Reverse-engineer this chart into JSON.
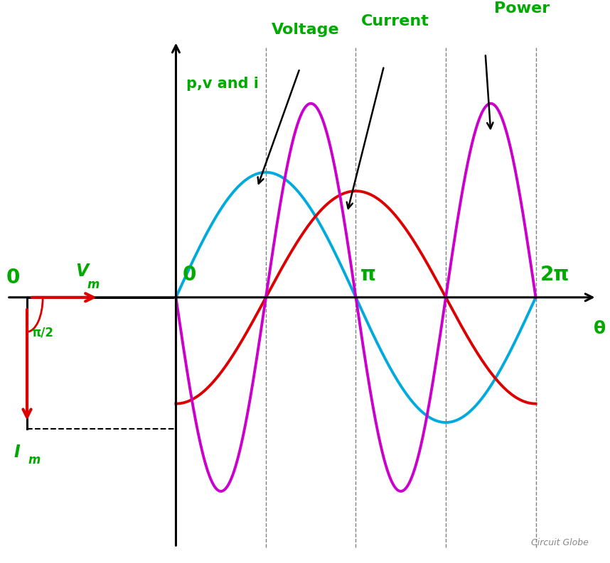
{
  "bg_color": "#ffffff",
  "green_color": "#00aa00",
  "red_color": "#dd0000",
  "cyan_color": "#00aadd",
  "magenta_color": "#cc00cc",
  "black_color": "#000000",
  "voltage_label": "Voltage",
  "current_label": "Current",
  "power_label": "Power",
  "y_axis_label": "p,v and i",
  "x_axis_label": "θ",
  "watermark": "Circuit Globe",
  "pi_label": "π",
  "two_pi_label": "2π",
  "zero_label": "0",
  "left_zero_label": "0",
  "vm_label": "V",
  "vm_sub": "m",
  "im_label": "I",
  "im_sub": "m",
  "pi2_label": "π/2",
  "Vm": 1.0,
  "Im": 0.85,
  "Pm": 1.55
}
